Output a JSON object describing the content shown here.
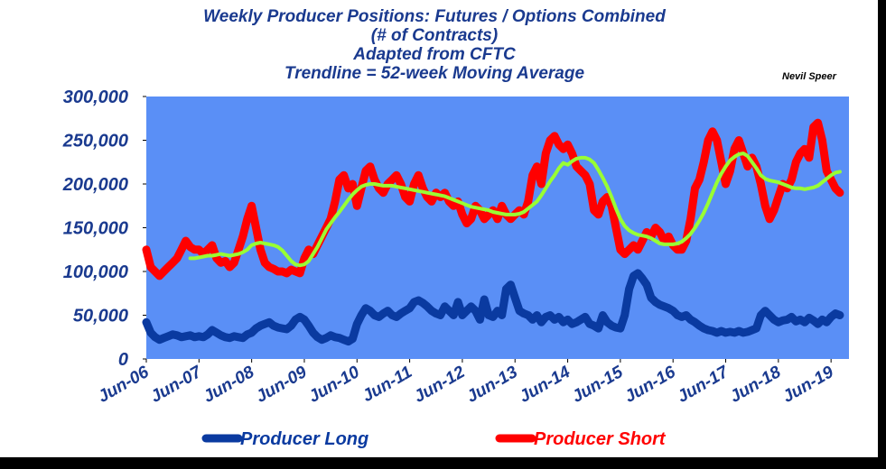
{
  "chart_data": {
    "type": "line",
    "title": [
      "Weekly Producer Positions: Futures / Options Combined",
      "(# of Contracts)",
      "Adapted from CFTC",
      "Trendline = 52-week Moving Average"
    ],
    "annotation": "Nevil Speer",
    "plot_background": "#5a8ff6",
    "categories": [
      "Jun-06",
      null,
      null,
      null,
      null,
      null,
      null,
      null,
      null,
      null,
      null,
      null,
      "Jun-07",
      null,
      null,
      null,
      null,
      null,
      null,
      null,
      null,
      null,
      null,
      null,
      "Jun-08",
      null,
      null,
      null,
      null,
      null,
      null,
      null,
      null,
      null,
      null,
      null,
      "Jun-09",
      null,
      null,
      null,
      null,
      null,
      null,
      null,
      null,
      null,
      null,
      null,
      "Jun-10",
      null,
      null,
      null,
      null,
      null,
      null,
      null,
      null,
      null,
      null,
      null,
      "Jun-11",
      null,
      null,
      null,
      null,
      null,
      null,
      null,
      null,
      null,
      null,
      null,
      "Jun-12",
      null,
      null,
      null,
      null,
      null,
      null,
      null,
      null,
      null,
      null,
      null,
      "Jun-13",
      null,
      null,
      null,
      null,
      null,
      null,
      null,
      null,
      null,
      null,
      null,
      "Jun-14",
      null,
      null,
      null,
      null,
      null,
      null,
      null,
      null,
      null,
      null,
      null,
      "Jun-15",
      null,
      null,
      null,
      null,
      null,
      null,
      null,
      null,
      null,
      null,
      null,
      "Jun-16",
      null,
      null,
      null,
      null,
      null,
      null,
      null,
      null,
      null,
      null,
      null,
      "Jun-17",
      null,
      null,
      null,
      null,
      null,
      null,
      null,
      null,
      null,
      null,
      null,
      "Jun-18",
      null,
      null,
      null,
      null,
      null,
      null,
      null,
      null,
      null,
      null,
      null,
      "Jun-19",
      null,
      null
    ],
    "series": [
      {
        "name": "Producer Short",
        "color": "#ff0000",
        "values": [
          125000,
          105000,
          100000,
          95000,
          100000,
          105000,
          110000,
          115000,
          125000,
          135000,
          128000,
          125000,
          125000,
          120000,
          125000,
          130000,
          115000,
          110000,
          112000,
          105000,
          110000,
          125000,
          140000,
          160000,
          175000,
          150000,
          125000,
          110000,
          105000,
          103000,
          100000,
          100000,
          98000,
          102000,
          100000,
          98000,
          115000,
          125000,
          120000,
          130000,
          140000,
          150000,
          160000,
          180000,
          205000,
          210000,
          195000,
          200000,
          175000,
          195000,
          215000,
          220000,
          205000,
          195000,
          190000,
          200000,
          205000,
          210000,
          200000,
          185000,
          180000,
          200000,
          210000,
          195000,
          185000,
          180000,
          190000,
          185000,
          190000,
          180000,
          175000,
          180000,
          165000,
          155000,
          160000,
          175000,
          170000,
          160000,
          165000,
          170000,
          160000,
          175000,
          165000,
          160000,
          165000,
          170000,
          165000,
          180000,
          210000,
          220000,
          200000,
          235000,
          250000,
          255000,
          245000,
          240000,
          245000,
          235000,
          220000,
          215000,
          210000,
          200000,
          170000,
          165000,
          180000,
          185000,
          175000,
          150000,
          125000,
          120000,
          125000,
          130000,
          125000,
          135000,
          145000,
          140000,
          150000,
          145000,
          135000,
          140000,
          130000,
          125000,
          125000,
          135000,
          160000,
          195000,
          205000,
          225000,
          250000,
          260000,
          250000,
          225000,
          200000,
          215000,
          240000,
          250000,
          235000,
          220000,
          230000,
          220000,
          200000,
          175000,
          160000,
          170000,
          185000,
          200000,
          195000,
          205000,
          225000,
          235000,
          240000,
          230000,
          265000,
          270000,
          250000,
          215000,
          205000,
          195000,
          190000
        ]
      },
      {
        "name": "Producer Long",
        "color": "#0a3aa0",
        "values": [
          42000,
          30000,
          25000,
          22000,
          24000,
          26000,
          28000,
          27000,
          25000,
          26000,
          27000,
          25000,
          26000,
          25000,
          28000,
          33000,
          30000,
          27000,
          25000,
          24000,
          26000,
          25000,
          24000,
          28000,
          30000,
          35000,
          38000,
          40000,
          42000,
          38000,
          36000,
          35000,
          34000,
          38000,
          45000,
          48000,
          45000,
          38000,
          30000,
          25000,
          22000,
          24000,
          27000,
          25000,
          24000,
          22000,
          20000,
          23000,
          40000,
          50000,
          58000,
          55000,
          50000,
          48000,
          52000,
          55000,
          50000,
          48000,
          52000,
          55000,
          58000,
          65000,
          67000,
          64000,
          60000,
          55000,
          52000,
          50000,
          60000,
          55000,
          50000,
          65000,
          50000,
          55000,
          60000,
          55000,
          45000,
          68000,
          50000,
          48000,
          55000,
          50000,
          80000,
          85000,
          70000,
          55000,
          52000,
          50000,
          45000,
          50000,
          42000,
          48000,
          50000,
          45000,
          48000,
          42000,
          45000,
          40000,
          42000,
          45000,
          48000,
          40000,
          38000,
          35000,
          50000,
          42000,
          38000,
          36000,
          35000,
          50000,
          80000,
          95000,
          98000,
          92000,
          85000,
          70000,
          65000,
          62000,
          60000,
          58000,
          55000,
          50000,
          48000,
          50000,
          45000,
          42000,
          38000,
          35000,
          33000,
          32000,
          30000,
          32000,
          30000,
          31000,
          30000,
          32000,
          30000,
          31000,
          33000,
          35000,
          50000,
          55000,
          50000,
          45000,
          42000,
          44000,
          45000,
          48000,
          43000,
          45000,
          42000,
          47000,
          44000,
          40000,
          45000,
          42000,
          48000,
          52000,
          50000
        ]
      },
      {
        "color": "#99ff33",
        "values": [
          null,
          null,
          null,
          null,
          null,
          null,
          null,
          null,
          null,
          null,
          115000,
          115000,
          116000,
          117000,
          118000,
          118000,
          119000,
          120000,
          119000,
          118000,
          119000,
          120000,
          122000,
          125000,
          130000,
          132000,
          133000,
          132000,
          131000,
          130000,
          128000,
          124000,
          118000,
          112000,
          108000,
          107000,
          108000,
          112000,
          120000,
          128000,
          138000,
          148000,
          155000,
          162000,
          168000,
          175000,
          182000,
          188000,
          193000,
          197000,
          199000,
          200000,
          200000,
          199000,
          198000,
          198000,
          198000,
          197000,
          196000,
          195000,
          194000,
          193000,
          192000,
          191000,
          190000,
          189000,
          188000,
          187000,
          186000,
          184000,
          182000,
          180000,
          178000,
          176000,
          174000,
          173000,
          172000,
          171000,
          170000,
          168000,
          167000,
          166000,
          165000,
          165000,
          165000,
          166000,
          168000,
          172000,
          176000,
          180000,
          187000,
          195000,
          203000,
          210000,
          218000,
          224000,
          222000,
          226000,
          229000,
          230000,
          230000,
          228000,
          224000,
          216000,
          207000,
          197000,
          185000,
          172000,
          160000,
          152000,
          147000,
          144000,
          142000,
          141000,
          140000,
          138000,
          135000,
          132000,
          131000,
          131000,
          131000,
          132000,
          134000,
          138000,
          143000,
          150000,
          158000,
          167000,
          178000,
          190000,
          202000,
          212000,
          220000,
          227000,
          231000,
          234000,
          235000,
          232000,
          225000,
          218000,
          210000,
          206000,
          204000,
          203000,
          202000,
          200000,
          198000,
          196000,
          195000,
          195000,
          194000,
          195000,
          196000,
          198000,
          202000,
          206000,
          210000,
          213000,
          214000
        ]
      }
    ],
    "legend_series": [
      1,
      0
    ],
    "ylim": [
      0,
      300000
    ],
    "yticks": [
      0,
      {
        "value": 50000,
        "label": "50,000"
      },
      {
        "value": 100000,
        "label": "100,000"
      },
      {
        "value": 150000,
        "label": "150,000"
      },
      {
        "value": 200000,
        "label": "200,000"
      },
      {
        "value": 250000,
        "label": "250,000"
      },
      {
        "value": 300000,
        "label": "300,000"
      }
    ]
  }
}
